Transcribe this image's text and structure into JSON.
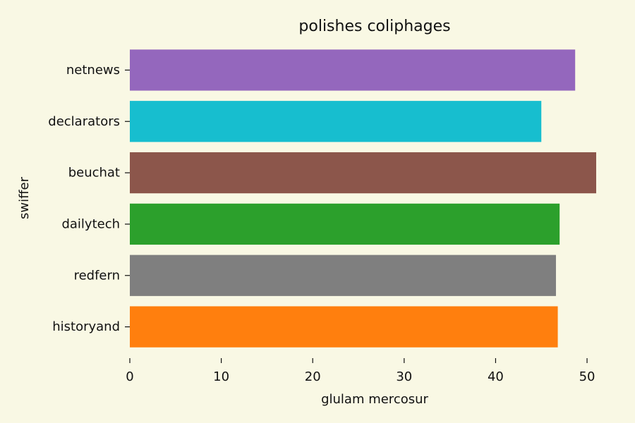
{
  "chart_data": {
    "type": "bar",
    "orientation": "horizontal",
    "title": "polishes coliphages",
    "xlabel": "glulam mercosur",
    "ylabel": "swiffer",
    "categories": [
      "netnews",
      "declarators",
      "beuchat",
      "dailytech",
      "redfern",
      "historyand"
    ],
    "values": [
      48.7,
      45.0,
      51.0,
      47.0,
      46.6,
      46.8
    ],
    "colors": [
      "#9467bd",
      "#17becf",
      "#8c564b",
      "#2ca02c",
      "#7f7f7f",
      "#ff7f0e"
    ],
    "xlim": [
      0,
      51
    ],
    "xticks": [
      0,
      10,
      20,
      30,
      40,
      50
    ],
    "grid": false,
    "legend": "none",
    "background": "#f9f8e4"
  }
}
